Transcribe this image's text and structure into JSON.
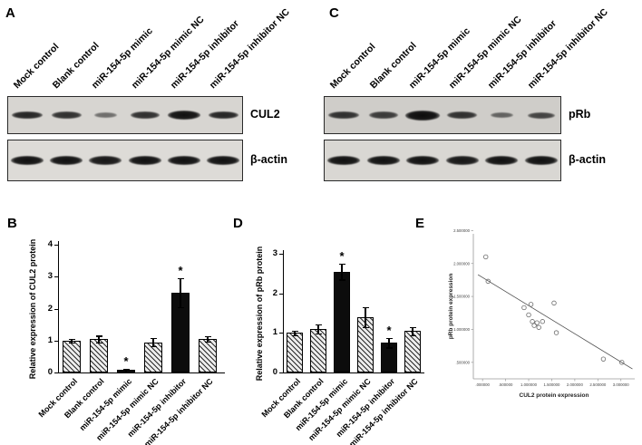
{
  "panels": {
    "A": {
      "label": "A"
    },
    "B": {
      "label": "B"
    },
    "C": {
      "label": "C"
    },
    "D": {
      "label": "D"
    },
    "E": {
      "label": "E"
    }
  },
  "lanes": [
    "Mock control",
    "Blank control",
    "miR-154-5p mimic",
    "miR-154-5p mimic NC",
    "miR-154-5p inhibitor",
    "miR-154-5p inhibitor NC"
  ],
  "blots": [
    {
      "panel": "A",
      "rows": [
        {
          "protein": "CUL2",
          "bands": [
            [
              34,
              8,
              0.85
            ],
            [
              33,
              8,
              0.8
            ],
            [
              25,
              6,
              0.5
            ],
            [
              32,
              8,
              0.8
            ],
            [
              36,
              10,
              0.95
            ],
            [
              33,
              8,
              0.85
            ]
          ]
        },
        {
          "protein": "β-actin",
          "bands": [
            [
              36,
              10,
              0.95
            ],
            [
              36,
              10,
              0.95
            ],
            [
              36,
              10,
              0.92
            ],
            [
              36,
              10,
              0.95
            ],
            [
              36,
              10,
              0.95
            ],
            [
              36,
              10,
              0.95
            ]
          ]
        }
      ]
    },
    {
      "panel": "C",
      "rows": [
        {
          "protein": "pRb",
          "bands": [
            [
              34,
              8,
              0.8
            ],
            [
              32,
              8,
              0.75
            ],
            [
              38,
              11,
              0.97
            ],
            [
              33,
              8,
              0.8
            ],
            [
              25,
              6,
              0.55
            ],
            [
              30,
              7,
              0.7
            ]
          ]
        },
        {
          "protein": "β-actin",
          "bands": [
            [
              36,
              10,
              0.95
            ],
            [
              36,
              10,
              0.95
            ],
            [
              36,
              10,
              0.95
            ],
            [
              36,
              10,
              0.92
            ],
            [
              36,
              10,
              0.95
            ],
            [
              36,
              10,
              0.95
            ]
          ]
        }
      ]
    }
  ],
  "chart_data": [
    {
      "id": "B",
      "type": "bar",
      "categories": [
        "Mock control",
        "Blank control",
        "miR-154-5p mimic",
        "miR-154-5p mimic NC",
        "miR-154-5p inhibitor",
        "miR-154-5p inhibitor NC"
      ],
      "values": [
        1.0,
        1.05,
        0.08,
        0.95,
        2.5,
        1.05
      ],
      "errors": [
        0.06,
        0.1,
        0.04,
        0.12,
        0.45,
        0.08
      ],
      "significance": [
        "",
        "",
        "*",
        "",
        "*",
        ""
      ],
      "pattern": [
        "hatch",
        "hatch",
        "solid",
        "hatch",
        "solid",
        "hatch"
      ],
      "title": "",
      "xlabel": "",
      "ylabel": "Relative expression of CUL2 protein",
      "ylim": [
        0,
        4
      ],
      "yticks": [
        0,
        1,
        2,
        3,
        4
      ]
    },
    {
      "id": "D",
      "type": "bar",
      "categories": [
        "Mock control",
        "Blank control",
        "miR-154-5p mimic",
        "miR-154-5p mimic NC",
        "miR-154-5p inhibitor",
        "miR-154-5p inhibitor NC"
      ],
      "values": [
        1.0,
        1.1,
        2.55,
        1.4,
        0.75,
        1.05
      ],
      "errors": [
        0.05,
        0.12,
        0.2,
        0.25,
        0.12,
        0.1
      ],
      "significance": [
        "",
        "",
        "*",
        "",
        "*",
        ""
      ],
      "pattern": [
        "hatch",
        "hatch",
        "solid",
        "hatch",
        "solid",
        "hatch"
      ],
      "title": "",
      "xlabel": "",
      "ylabel": "Relative expression of pRb protein",
      "ylim": [
        0,
        3
      ],
      "yticks": [
        0,
        1,
        2,
        3
      ]
    },
    {
      "id": "E",
      "type": "scatter",
      "xlabel": "CUL2 protein expression",
      "ylabel": "pRb protein expression",
      "xlim": [
        -0.2,
        3.3
      ],
      "ylim": [
        0.25,
        2.45
      ],
      "xtick_values": [
        0,
        0.5,
        1,
        1.5,
        2,
        2.5,
        3
      ],
      "xtick_labels": [
        ".000000",
        ".500000",
        "1.000000",
        "1.500000",
        "2.000000",
        "2.500000",
        "3.000000"
      ],
      "ytick_values": [
        0.5,
        1,
        1.5,
        2,
        2.5
      ],
      "ytick_labels": [
        ".500000",
        "1.000000",
        "1.500000",
        "2.000000",
        "2.500000"
      ],
      "points": [
        [
          0.07,
          2.1
        ],
        [
          0.12,
          1.73
        ],
        [
          0.9,
          1.33
        ],
        [
          1.0,
          1.22
        ],
        [
          1.05,
          1.38
        ],
        [
          1.08,
          1.12
        ],
        [
          1.12,
          1.06
        ],
        [
          1.18,
          1.1
        ],
        [
          1.22,
          1.03
        ],
        [
          1.3,
          1.12
        ],
        [
          1.55,
          1.4
        ],
        [
          1.6,
          0.95
        ],
        [
          2.62,
          0.55
        ],
        [
          3.02,
          0.5
        ]
      ],
      "fit_line": {
        "x": [
          -0.1,
          3.25
        ],
        "y": [
          1.83,
          0.4
        ]
      }
    }
  ]
}
